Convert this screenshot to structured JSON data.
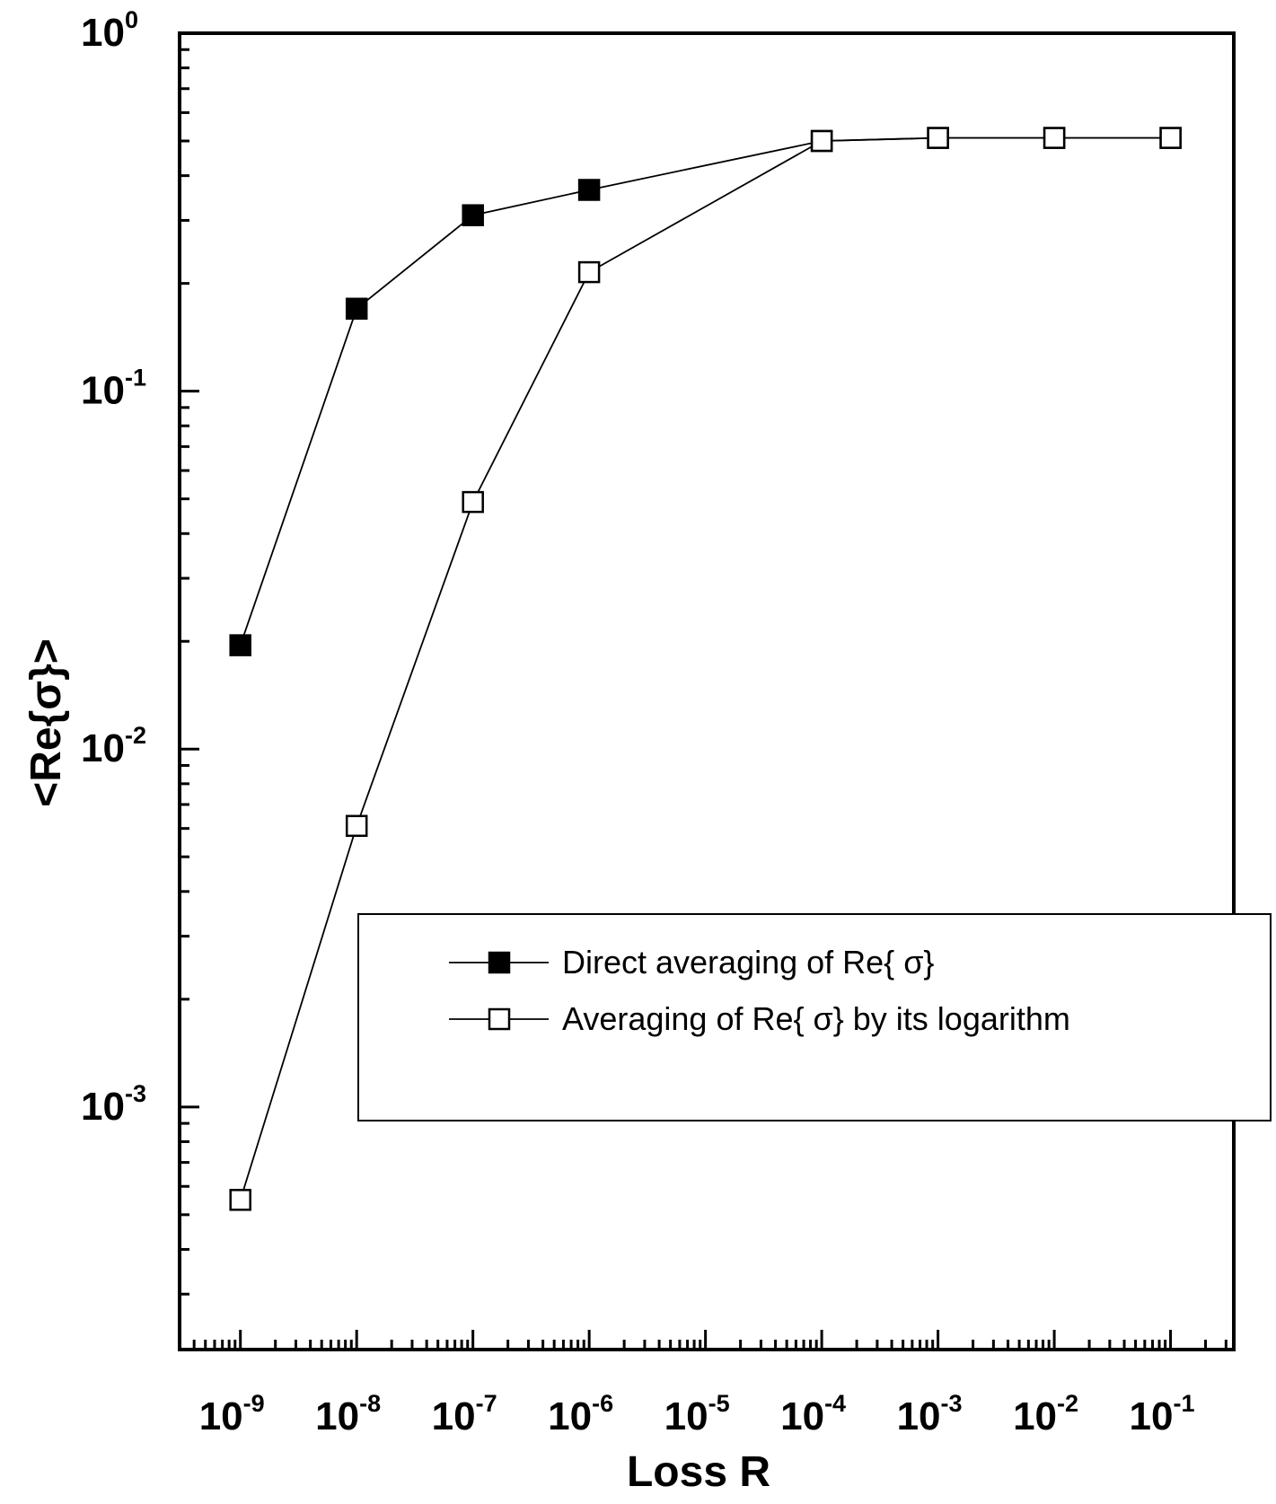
{
  "chart_data": {
    "type": "scatter",
    "xlabel": "Loss R",
    "ylabel": "<Re{σ}>",
    "x_scale": "log",
    "y_scale": "log",
    "xlim": [
      3e-10,
      0.35
    ],
    "ylim": [
      0.00021,
      1
    ],
    "grid": false,
    "legend_position": "lower-right",
    "x_ticks": [
      {
        "base": "10",
        "exp": "-9"
      },
      {
        "base": "10",
        "exp": "-8"
      },
      {
        "base": "10",
        "exp": "-7"
      },
      {
        "base": "10",
        "exp": "-6"
      },
      {
        "base": "10",
        "exp": "-5"
      },
      {
        "base": "10",
        "exp": "-4"
      },
      {
        "base": "10",
        "exp": "-3"
      },
      {
        "base": "10",
        "exp": "-2"
      },
      {
        "base": "10",
        "exp": "-1"
      }
    ],
    "y_ticks": [
      {
        "base": "10",
        "exp": "0"
      },
      {
        "base": "10",
        "exp": "-1"
      },
      {
        "base": "10",
        "exp": "-2"
      },
      {
        "base": "10",
        "exp": "-3"
      }
    ],
    "series": [
      {
        "name": "Direct averaging of Re{ σ}",
        "marker": "filled-square",
        "x": [
          1e-09,
          1e-08,
          1e-07,
          1e-06,
          0.0001,
          0.001,
          0.01,
          0.1
        ],
        "y": [
          0.0195,
          0.17,
          0.31,
          0.365,
          0.5,
          0.51,
          0.51,
          0.51
        ]
      },
      {
        "name": "Averaging of Re{ σ} by its logarithm",
        "marker": "open-square",
        "x": [
          1e-09,
          1e-08,
          1e-07,
          1e-06,
          0.0001,
          0.001,
          0.01,
          0.1
        ],
        "y": [
          0.00055,
          0.0061,
          0.049,
          0.215,
          0.5,
          0.51,
          0.51,
          0.51
        ]
      }
    ]
  }
}
